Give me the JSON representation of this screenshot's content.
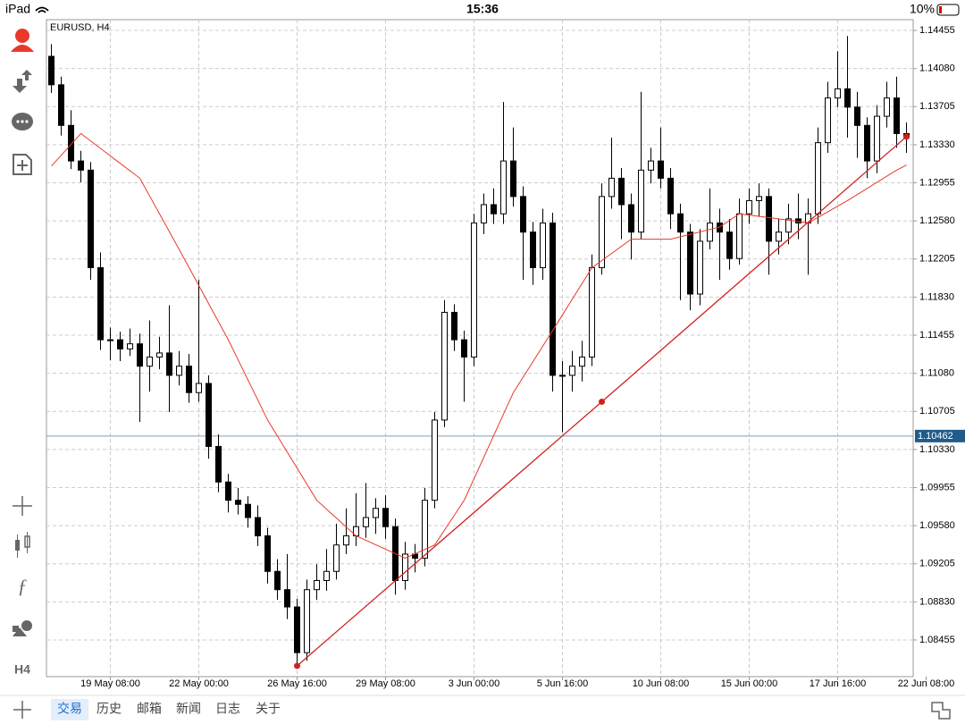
{
  "status_bar": {
    "device": "iPad",
    "time": "15:36",
    "battery": "10%"
  },
  "toolbar": {
    "timeframe": "H4"
  },
  "tabs": [
    "交易",
    "历史",
    "邮箱",
    "新闻",
    "日志",
    "关于"
  ],
  "chart_data": {
    "type": "candlestick",
    "title": "EURUSD, H4",
    "ylim": [
      1.08094,
      1.14561
    ],
    "yticks": [
      1.14455,
      {
        "value": 1.1408,
        "label": "1.14080"
      },
      1.13705,
      {
        "value": 1.1333,
        "label": "1.13330"
      },
      1.12955,
      {
        "value": 1.1258,
        "label": "1.12580"
      },
      1.12205,
      {
        "value": 1.1183,
        "label": "1.11830"
      },
      1.11455,
      {
        "value": 1.1108,
        "label": "1.11080"
      },
      1.10705,
      {
        "value": 1.1033,
        "label": "1.10330"
      },
      1.09955,
      {
        "value": 1.0958,
        "label": "1.09580"
      },
      1.09205,
      {
        "value": 1.0883,
        "label": "1.08830"
      },
      1.08455
    ],
    "xlim": [
      -0.5,
      89.5
    ],
    "xticks": [
      {
        "value": 6,
        "label": "19 May 08:00"
      },
      {
        "value": 15,
        "label": "22 May 00:00"
      },
      {
        "value": 25,
        "label": "26 May 16:00"
      },
      {
        "value": 34,
        "label": "29 May 08:00"
      },
      {
        "value": 43,
        "label": "3 Jun 00:00"
      },
      {
        "value": 52,
        "label": "5 Jun 16:00"
      },
      {
        "value": 62,
        "label": "10 Jun 08:00"
      },
      {
        "value": 71,
        "label": "15 Jun 00:00"
      },
      {
        "value": 80,
        "label": "17 Jun 16:00"
      },
      {
        "value": 89,
        "label": "22 Jun 08:00"
      }
    ],
    "grid": true,
    "up_color": "#ffffff",
    "down_color": "#000000",
    "open": [
      1.142,
      1.1392,
      1.1352,
      1.1317,
      1.1308,
      1.1212,
      1.1141,
      1.1141,
      1.1132,
      1.1137,
      1.1115,
      1.1124,
      1.1128,
      1.1106,
      1.1115,
      1.1089,
      1.1098,
      1.1036,
      1.1001,
      1.0983,
      1.0979,
      1.0966,
      1.0948,
      1.0913,
      1.0895,
      1.0878,
      1.0833,
      1.0895,
      1.0904,
      1.0913,
      1.0939,
      1.0948,
      1.0957,
      1.0966,
      1.0975,
      1.0957,
      1.0904,
      1.093,
      1.0926,
      1.0983,
      1.1062,
      1.1168,
      1.1141,
      1.1124,
      1.1256,
      1.1274,
      1.1265,
      1.1317,
      1.1282,
      1.1247,
      1.1212,
      1.1256,
      1.1106,
      1.1106,
      1.1115,
      1.1124,
      1.1212,
      1.1282,
      1.13,
      1.1274,
      1.1247,
      1.1308,
      1.1317,
      1.13,
      1.1265,
      1.1247,
      1.1186,
      1.1238,
      1.1256,
      1.1247,
      1.1221,
      1.1265,
      1.1278,
      1.1282,
      1.1238,
      1.1247,
      1.126,
      1.1256,
      1.1265,
      1.1335,
      1.1379,
      1.1388,
      1.137,
      1.1352,
      1.1317,
      1.1361,
      1.1379,
      1.1344
    ],
    "high": [
      1.1432,
      1.14,
      1.1367,
      1.1327,
      1.1316,
      1.1227,
      1.1153,
      1.1149,
      1.1152,
      1.1147,
      1.116,
      1.1144,
      1.1175,
      1.113,
      1.1127,
      1.12,
      1.1106,
      1.1048,
      1.1009,
      1.0995,
      1.0987,
      1.0978,
      1.0956,
      1.0925,
      1.093,
      1.0886,
      1.0905,
      1.092,
      1.0935,
      1.096,
      1.0975,
      1.099,
      1.1,
      1.0985,
      1.0988,
      1.0965,
      1.0942,
      1.094,
      1.0995,
      1.107,
      1.118,
      1.1176,
      1.115,
      1.1265,
      1.1285,
      1.129,
      1.1375,
      1.135,
      1.1292,
      1.1257,
      1.127,
      1.1266,
      1.112,
      1.113,
      1.114,
      1.1225,
      1.1295,
      1.134,
      1.131,
      1.1285,
      1.1385,
      1.133,
      1.135,
      1.131,
      1.1275,
      1.1255,
      1.125,
      1.129,
      1.127,
      1.126,
      1.128,
      1.129,
      1.1295,
      1.129,
      1.126,
      1.1275,
      1.1285,
      1.128,
      1.135,
      1.1395,
      1.1425,
      1.144,
      1.1385,
      1.136,
      1.1372,
      1.1395,
      1.14,
      1.1355
    ],
    "low": [
      1.1384,
      1.1342,
      1.1309,
      1.1296,
      1.12,
      1.1131,
      1.1121,
      1.112,
      1.1125,
      1.106,
      1.109,
      1.1112,
      1.107,
      1.1096,
      1.1079,
      1.108,
      1.1024,
      1.0991,
      1.0971,
      1.0969,
      1.0956,
      1.0938,
      1.0901,
      1.0885,
      1.0866,
      1.0823,
      1.0825,
      1.0885,
      1.0894,
      1.0905,
      1.093,
      1.0938,
      1.0946,
      1.095,
      1.0945,
      1.089,
      1.0895,
      1.0912,
      1.0918,
      1.0975,
      1.1055,
      1.113,
      1.108,
      1.1115,
      1.1245,
      1.1255,
      1.1255,
      1.1272,
      1.12,
      1.1195,
      1.12,
      1.109,
      1.105,
      1.109,
      1.11,
      1.1115,
      1.1205,
      1.127,
      1.124,
      1.122,
      1.124,
      1.1295,
      1.129,
      1.125,
      1.118,
      1.117,
      1.1175,
      1.123,
      1.12,
      1.121,
      1.1215,
      1.1255,
      1.1262,
      1.1205,
      1.1225,
      1.1235,
      1.124,
      1.1205,
      1.1255,
      1.1325,
      1.137,
      1.134,
      1.132,
      1.13,
      1.1305,
      1.135,
      1.133,
      1.1325
    ],
    "close": [
      1.1392,
      1.1352,
      1.1317,
      1.1308,
      1.1212,
      1.1141,
      1.1141,
      1.1132,
      1.1137,
      1.1115,
      1.1124,
      1.1128,
      1.1106,
      1.1115,
      1.1089,
      1.1098,
      1.1036,
      1.1001,
      1.0983,
      1.0979,
      1.0966,
      1.0948,
      1.0913,
      1.0895,
      1.0878,
      1.0833,
      1.0895,
      1.0904,
      1.0913,
      1.0939,
      1.0948,
      1.0957,
      1.0966,
      1.0975,
      1.0957,
      1.0904,
      1.093,
      1.0926,
      1.0983,
      1.1062,
      1.1168,
      1.1141,
      1.1124,
      1.1256,
      1.1274,
      1.1265,
      1.1317,
      1.1282,
      1.1247,
      1.1212,
      1.1256,
      1.1106,
      1.1106,
      1.1115,
      1.1124,
      1.1212,
      1.1282,
      1.13,
      1.1274,
      1.1247,
      1.1308,
      1.1317,
      1.13,
      1.1265,
      1.1247,
      1.1186,
      1.1238,
      1.1256,
      1.1247,
      1.1221,
      1.1265,
      1.1278,
      1.1282,
      1.1238,
      1.1247,
      1.126,
      1.1256,
      1.1265,
      1.1335,
      1.1379,
      1.1388,
      1.137,
      1.1352,
      1.1317,
      1.1361,
      1.1379,
      1.1344,
      1.134
    ],
    "moving_average": {
      "color": "#e8392b",
      "x": [
        0,
        3,
        9,
        13,
        18,
        22,
        27,
        31,
        36,
        39,
        42,
        47,
        51,
        55,
        59,
        63,
        68,
        70,
        74,
        77,
        81,
        86,
        87
      ],
      "values": [
        1.1312,
        1.1344,
        1.13,
        1.123,
        1.1141,
        1.1062,
        1.0983,
        1.0948,
        1.0926,
        1.0939,
        1.0983,
        1.1089,
        1.115,
        1.1212,
        1.124,
        1.124,
        1.1252,
        1.1265,
        1.126,
        1.1256,
        1.1278,
        1.1308,
        1.1313
      ]
    },
    "trendline": {
      "color": "#d21f1f",
      "x": [
        25,
        56,
        87
      ],
      "values": [
        1.082,
        1.108,
        1.1341
      ]
    },
    "current_price": {
      "value": 1.10462,
      "color": "#7f9fb8"
    }
  }
}
